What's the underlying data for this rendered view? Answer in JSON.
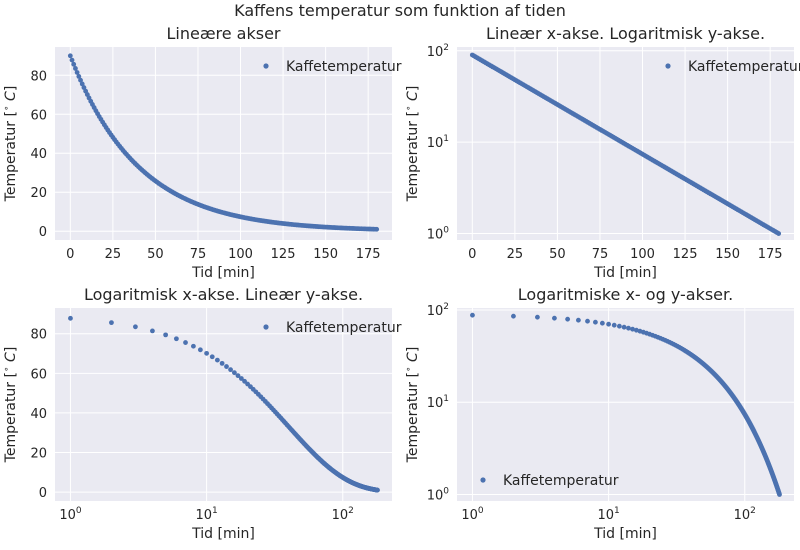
{
  "figure": {
    "suptitle": "Kaffens temperatur som funktion af tiden"
  },
  "style": {
    "face_color": "#EAEAF2",
    "grid_color": "#FFFFFF",
    "point_color": "#4C72B0",
    "text_color": "#262626"
  },
  "series_model": {
    "T0": 90,
    "k": 0.025
  },
  "chart_data": [
    {
      "type": "scatter",
      "title": "Lineære akser",
      "xlabel": "Tid [min]",
      "ylabel": "Temperatur [$^\\circ C$]",
      "xscale": "linear",
      "yscale": "linear",
      "xlim": [
        -9,
        189
      ],
      "ylim": [
        -4.5,
        94.5
      ],
      "xticks": [
        0,
        25,
        50,
        75,
        100,
        125,
        150,
        175
      ],
      "xtick_labels": [
        "0",
        "25",
        "50",
        "75",
        "100",
        "125",
        "150",
        "175"
      ],
      "yticks": [
        0,
        20,
        40,
        60,
        80
      ],
      "ytick_labels": [
        "0",
        "20",
        "40",
        "60",
        "80"
      ],
      "legend": {
        "label": "Kaffetemperatur",
        "loc": "upper right"
      },
      "x_range": [
        0,
        180
      ],
      "x_step": 1
    },
    {
      "type": "scatter",
      "title": "Lineær x-akse. Logaritmisk y-akse.",
      "xlabel": "Tid [min]",
      "ylabel": "Temperatur [$^\\circ C$]",
      "xscale": "linear",
      "yscale": "log",
      "xlim": [
        -9,
        189
      ],
      "ylim": [
        0.85,
        110
      ],
      "xticks": [
        0,
        25,
        50,
        75,
        100,
        125,
        150,
        175
      ],
      "xtick_labels": [
        "0",
        "25",
        "50",
        "75",
        "100",
        "125",
        "150",
        "175"
      ],
      "yticks": [
        1,
        10,
        100
      ],
      "ytick_labels": [
        "10^0",
        "10^1",
        "10^2"
      ],
      "legend": {
        "label": "Kaffetemperatur",
        "loc": "upper right"
      },
      "x_range": [
        0,
        180
      ],
      "x_step": 1
    },
    {
      "type": "scatter",
      "title": "Logaritmisk x-akse. Lineær y-akse.",
      "xlabel": "Tid [min]",
      "ylabel": "Temperatur [$^\\circ C$]",
      "xscale": "log",
      "yscale": "linear",
      "xlim": [
        0.77,
        230
      ],
      "ylim": [
        -4.5,
        93
      ],
      "xticks": [
        1,
        10,
        100
      ],
      "xtick_labels": [
        "10^0",
        "10^1",
        "10^2"
      ],
      "yticks": [
        0,
        20,
        40,
        60,
        80
      ],
      "ytick_labels": [
        "0",
        "20",
        "40",
        "60",
        "80"
      ],
      "legend": {
        "label": "Kaffetemperatur",
        "loc": "upper right"
      },
      "x_range": [
        1,
        180
      ],
      "x_step": 1
    },
    {
      "type": "scatter",
      "title": "Logaritmiske x- og y-akser.",
      "xlabel": "Tid [min]",
      "ylabel": "Temperatur [$^\\circ C$]",
      "xscale": "log",
      "yscale": "log",
      "xlim": [
        0.77,
        230
      ],
      "ylim": [
        0.85,
        105
      ],
      "xticks": [
        1,
        10,
        100
      ],
      "xtick_labels": [
        "10^0",
        "10^1",
        "10^2"
      ],
      "yticks": [
        1,
        10,
        100
      ],
      "ytick_labels": [
        "10^0",
        "10^1",
        "10^2"
      ],
      "legend": {
        "label": "Kaffetemperatur",
        "loc": "lower left"
      },
      "x_range": [
        1,
        180
      ],
      "x_step": 1
    }
  ]
}
